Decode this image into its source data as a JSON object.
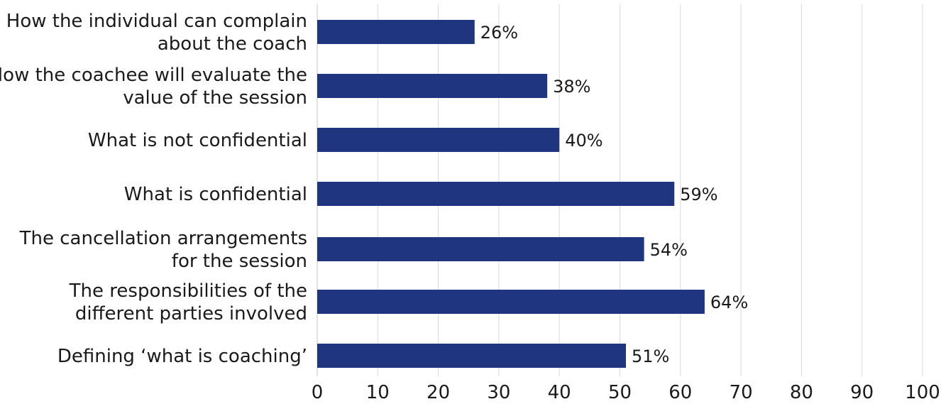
{
  "chart_data": {
    "type": "bar",
    "orientation": "horizontal",
    "categories": [
      [
        "How the individual can complain",
        "about the coach"
      ],
      [
        "How the coachee will evaluate the",
        "value of the session"
      ],
      [
        "What is not confidential"
      ],
      [
        "What is confidential"
      ],
      [
        "The cancellation arrangements",
        "for the session"
      ],
      [
        "The responsibilities of the",
        "different parties involved"
      ],
      [
        "Defining ‘what is coaching’"
      ]
    ],
    "values": [
      26,
      38,
      40,
      59,
      54,
      64,
      51
    ],
    "data_labels": [
      "26%",
      "38%",
      "40%",
      "59%",
      "54%",
      "64%",
      "51%"
    ],
    "x_ticks": [
      "0",
      "10",
      "20",
      "30",
      "40",
      "50",
      "60",
      "70",
      "80",
      "90",
      "100"
    ],
    "xlim": [
      0,
      100
    ],
    "grid": "vertical",
    "title": "",
    "xlabel": "",
    "ylabel": "",
    "bar_color": "#203580",
    "grid_color": "#d9d9d9"
  }
}
